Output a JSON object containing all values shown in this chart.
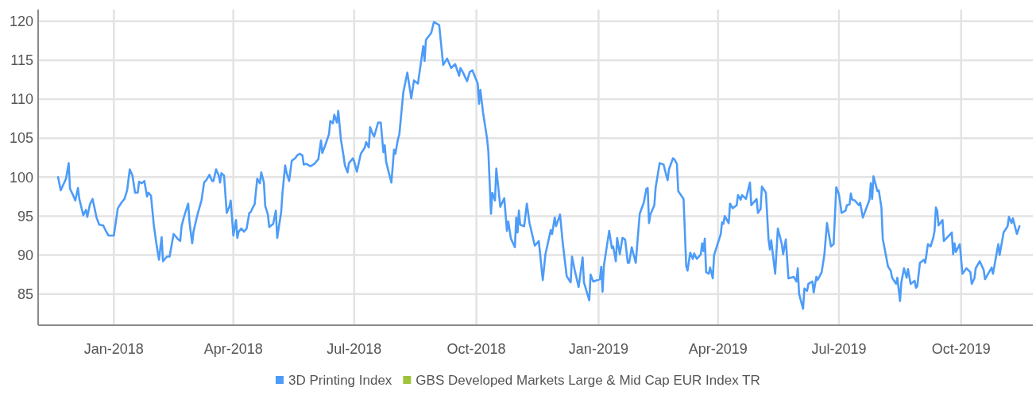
{
  "chart_data": {
    "type": "line",
    "xlim": [
      "2017-11-05",
      "2019-11-24"
    ],
    "ylim": [
      81,
      121.5
    ],
    "xticks": [
      {
        "value": "2018-01",
        "label": "Jan-2018"
      },
      {
        "value": "2018-04",
        "label": "Apr-2018"
      },
      {
        "value": "2018-07",
        "label": "Jul-2018"
      },
      {
        "value": "2018-10",
        "label": "Oct-2018"
      },
      {
        "value": "2019-01",
        "label": "Jan-2019"
      },
      {
        "value": "2019-04",
        "label": "Apr-2019"
      },
      {
        "value": "2019-07",
        "label": "Jul-2019"
      },
      {
        "value": "2019-10",
        "label": "Oct-2019"
      }
    ],
    "yticks": [
      85,
      90,
      95,
      100,
      105,
      110,
      115,
      120
    ],
    "grid": true,
    "legend": "bottom",
    "marker": "none",
    "line_style": "solid",
    "series": [
      {
        "name": "3D Printing Index",
        "color": "#4d9cf8",
        "x": [
          "2017-11-20",
          "2017-11-22",
          "2017-11-26",
          "2017-11-28",
          "2017-11-29",
          "2017-12-01",
          "2017-12-03",
          "2017-12-05",
          "2017-12-06",
          "2017-12-08",
          "2017-12-09",
          "2017-12-11",
          "2017-12-12",
          "2017-12-14",
          "2017-12-16",
          "2017-12-19",
          "2017-12-21",
          "2017-12-24",
          "2017-12-26",
          "2017-12-28",
          "2018-01-01",
          "2018-01-04",
          "2018-01-07",
          "2018-01-09",
          "2018-01-11",
          "2018-01-13",
          "2018-01-15",
          "2018-01-17",
          "2018-01-19",
          "2018-01-20",
          "2018-01-22",
          "2018-01-24",
          "2018-01-26",
          "2018-01-27",
          "2018-01-29",
          "2018-01-31",
          "2018-02-02",
          "2018-02-04",
          "2018-02-06",
          "2018-02-07",
          "2018-02-10",
          "2018-02-12",
          "2018-02-15",
          "2018-02-18",
          "2018-02-20",
          "2018-02-21",
          "2018-02-23",
          "2018-02-26",
          "2018-02-27",
          "2018-03-01",
          "2018-03-02",
          "2018-03-05",
          "2018-03-08",
          "2018-03-10",
          "2018-03-12",
          "2018-03-14",
          "2018-03-16",
          "2018-03-17",
          "2018-03-19",
          "2018-03-21",
          "2018-03-22",
          "2018-03-23",
          "2018-03-25",
          "2018-03-27",
          "2018-03-29",
          "2018-03-30",
          "2018-04-01",
          "2018-04-03",
          "2018-04-04",
          "2018-04-05",
          "2018-04-07",
          "2018-04-09",
          "2018-04-11",
          "2018-04-13",
          "2018-04-14",
          "2018-04-16",
          "2018-04-17",
          "2018-04-19",
          "2018-04-21",
          "2018-04-22",
          "2018-04-24",
          "2018-04-25",
          "2018-04-27",
          "2018-04-28",
          "2018-05-01",
          "2018-05-03",
          "2018-05-04",
          "2018-05-07",
          "2018-05-08",
          "2018-05-10",
          "2018-05-11",
          "2018-05-13",
          "2018-05-15",
          "2018-05-18",
          "2018-05-19",
          "2018-05-21",
          "2018-05-23",
          "2018-05-24",
          "2018-05-26",
          "2018-05-29",
          "2018-05-31",
          "2018-06-01",
          "2018-06-04",
          "2018-06-06",
          "2018-06-07",
          "2018-06-09",
          "2018-06-12",
          "2018-06-13",
          "2018-06-15",
          "2018-06-16",
          "2018-06-18",
          "2018-06-19",
          "2018-06-21",
          "2018-06-23",
          "2018-06-24",
          "2018-06-26",
          "2018-06-27",
          "2018-06-30",
          "2018-07-01",
          "2018-07-03",
          "2018-07-06",
          "2018-07-09",
          "2018-07-10",
          "2018-07-12",
          "2018-07-13",
          "2018-07-15",
          "2018-07-16",
          "2018-07-19",
          "2018-07-21",
          "2018-07-23",
          "2018-07-24",
          "2018-07-25",
          "2018-07-27",
          "2018-07-29",
          "2018-07-31",
          "2018-08-01",
          "2018-08-03",
          "2018-08-04",
          "2018-08-07",
          "2018-08-10",
          "2018-08-13",
          "2018-08-15",
          "2018-08-18",
          "2018-08-22",
          "2018-08-23",
          "2018-08-24",
          "2018-08-28",
          "2018-08-30",
          "2018-09-03",
          "2018-09-06",
          "2018-09-09",
          "2018-09-12",
          "2018-09-15",
          "2018-09-18",
          "2018-09-19",
          "2018-09-21",
          "2018-09-24",
          "2018-09-26",
          "2018-09-28",
          "2018-10-02",
          "2018-10-03",
          "2018-10-04",
          "2018-10-06",
          "2018-10-09",
          "2018-10-10",
          "2018-10-12",
          "2018-10-13",
          "2018-10-15",
          "2018-10-16",
          "2018-10-19",
          "2018-10-22",
          "2018-10-24",
          "2018-10-25",
          "2018-10-27",
          "2018-10-30",
          "2018-10-31",
          "2018-11-01",
          "2018-11-02",
          "2018-11-03",
          "2018-11-06",
          "2018-11-08",
          "2018-11-10",
          "2018-11-14",
          "2018-11-17",
          "2018-11-20",
          "2018-11-22",
          "2018-11-26",
          "2018-11-27",
          "2018-11-29",
          "2018-11-30",
          "2018-12-03",
          "2018-12-05",
          "2018-12-08",
          "2018-12-11",
          "2018-12-12",
          "2018-12-14",
          "2018-12-17",
          "2018-12-20",
          "2018-12-21",
          "2018-12-25",
          "2018-12-26",
          "2018-12-28",
          "2019-01-02",
          "2019-01-03",
          "2019-01-04",
          "2019-01-05",
          "2019-01-09",
          "2019-01-11",
          "2019-01-12",
          "2019-01-14",
          "2019-01-15",
          "2019-01-17",
          "2019-01-19",
          "2019-01-21",
          "2019-01-23",
          "2019-01-24",
          "2019-01-26",
          "2019-01-29",
          "2019-02-01",
          "2019-02-04",
          "2019-02-06",
          "2019-02-07",
          "2019-02-08",
          "2019-02-09",
          "2019-02-12",
          "2019-02-13",
          "2019-02-14",
          "2019-02-16",
          "2019-02-19",
          "2019-02-20",
          "2019-02-22",
          "2019-02-23",
          "2019-02-26",
          "2019-02-27",
          "2019-03-01",
          "2019-03-02",
          "2019-03-06",
          "2019-03-08",
          "2019-03-09",
          "2019-03-11",
          "2019-03-13",
          "2019-03-14",
          "2019-03-16",
          "2019-03-19",
          "2019-03-20",
          "2019-03-21",
          "2019-03-22",
          "2019-03-23",
          "2019-03-25",
          "2019-03-26",
          "2019-03-28",
          "2019-03-29",
          "2019-04-03",
          "2019-04-04",
          "2019-04-05",
          "2019-04-06",
          "2019-04-09",
          "2019-04-10",
          "2019-04-12",
          "2019-04-15",
          "2019-04-16",
          "2019-04-18",
          "2019-04-19",
          "2019-04-22",
          "2019-04-25",
          "2019-04-26",
          "2019-04-30",
          "2019-05-01",
          "2019-05-03",
          "2019-05-04",
          "2019-05-07",
          "2019-05-09",
          "2019-05-10",
          "2019-05-11",
          "2019-05-14",
          "2019-05-16",
          "2019-05-19",
          "2019-05-20",
          "2019-05-22",
          "2019-05-24",
          "2019-05-28",
          "2019-05-30",
          "2019-05-31",
          "2019-06-01",
          "2019-06-04",
          "2019-06-05",
          "2019-06-07",
          "2019-06-08",
          "2019-06-11",
          "2019-06-12",
          "2019-06-14",
          "2019-06-15",
          "2019-06-18",
          "2019-06-20",
          "2019-06-22",
          "2019-06-25",
          "2019-06-27",
          "2019-06-29",
          "2019-07-01",
          "2019-07-03",
          "2019-07-06",
          "2019-07-07",
          "2019-07-09",
          "2019-07-10",
          "2019-07-11",
          "2019-07-13",
          "2019-07-16",
          "2019-07-17",
          "2019-07-19",
          "2019-07-24",
          "2019-07-25",
          "2019-07-26",
          "2019-07-27",
          "2019-07-30",
          "2019-07-31",
          "2019-08-02",
          "2019-08-03",
          "2019-08-07",
          "2019-08-09",
          "2019-08-10",
          "2019-08-13",
          "2019-08-14",
          "2019-08-16",
          "2019-08-17",
          "2019-08-19",
          "2019-08-21",
          "2019-08-22",
          "2019-08-24",
          "2019-08-27",
          "2019-08-28",
          "2019-08-29",
          "2019-08-31",
          "2019-09-03",
          "2019-09-04",
          "2019-09-06",
          "2019-09-08",
          "2019-09-10",
          "2019-09-11",
          "2019-09-12",
          "2019-09-13",
          "2019-09-14",
          "2019-09-17",
          "2019-09-18",
          "2019-09-24",
          "2019-09-25",
          "2019-09-26",
          "2019-09-27",
          "2019-09-30",
          "2019-10-02",
          "2019-10-05",
          "2019-10-08",
          "2019-10-09",
          "2019-10-11",
          "2019-10-12",
          "2019-10-15",
          "2019-10-18",
          "2019-10-19",
          "2019-10-24",
          "2019-10-25",
          "2019-10-29",
          "2019-10-30",
          "2019-11-02",
          "2019-11-05",
          "2019-11-06",
          "2019-11-08",
          "2019-11-09",
          "2019-11-12",
          "2019-11-14"
        ],
        "values": [
          100.0,
          98.3,
          99.8,
          101.8,
          98.5,
          97.8,
          97,
          98.6,
          97.2,
          95.8,
          95.1,
          95.8,
          94.9,
          96.5,
          97.2,
          94.8,
          93.9,
          93.8,
          93.1,
          92.5,
          92.5,
          96,
          96.8,
          97.2,
          98.3,
          101,
          100.2,
          98,
          98,
          99.4,
          99.2,
          99.5,
          97.5,
          98,
          97.6,
          94,
          91.5,
          89.4,
          92.3,
          89.2,
          89.8,
          89.8,
          92.7,
          92.1,
          91.8,
          93.7,
          95,
          96.6,
          94.2,
          91.5,
          93,
          95.2,
          97,
          99.3,
          99.7,
          100.3,
          99.5,
          99.5,
          101,
          100.2,
          99.3,
          100.5,
          100.2,
          95.4,
          96.2,
          97,
          92.5,
          94.5,
          92.2,
          93,
          93.4,
          93,
          93.4,
          95.4,
          95.5,
          96.2,
          96.5,
          99.8,
          99.2,
          100.6,
          99.3,
          96.3,
          95.2,
          93.6,
          94,
          95.7,
          92.2,
          95.5,
          98,
          101.5,
          100.6,
          99.5,
          102.1,
          102.5,
          102.8,
          103,
          102.8,
          101.6,
          101.7,
          101.4,
          101.6,
          101.7,
          102.3,
          104.7,
          103.1,
          104,
          105.5,
          107.2,
          106.9,
          108,
          107,
          108.5,
          104.8,
          102.7,
          101.5,
          100.6,
          101.8,
          102.4,
          102,
          100.7,
          103,
          103.8,
          104.5,
          103.8,
          106.4,
          105.5,
          105.2,
          107,
          107,
          103.2,
          104.1,
          102,
          100.6,
          99.3,
          103.5,
          103,
          104.9,
          105.5,
          110.9,
          113.4,
          110.1,
          112.4,
          112,
          116.8,
          114.9,
          117.6,
          118.5,
          119.9,
          119.5,
          114.4,
          115.2,
          114,
          114.5,
          113,
          114,
          113.4,
          112.3,
          113.5,
          113.7,
          112,
          109.4,
          111.2,
          108.3,
          105,
          103.3,
          95.3,
          98,
          97,
          101.1,
          96.2,
          97.3,
          93.1,
          94.3,
          92.1,
          91,
          94.8,
          92.9,
          95.7,
          93.9,
          93.7,
          96.6,
          94.1,
          91.2,
          91.8,
          86.8,
          90.1,
          93.2,
          92.7,
          94.8,
          93.7,
          95.2,
          91.6,
          87.3,
          86.5,
          89.8,
          88.1,
          85.9,
          89.7,
          86.5,
          84.2,
          87.5,
          86.6,
          86.9,
          88.5,
          85.3,
          88.6,
          93.1,
          90.9,
          91.1,
          89.2,
          92.2,
          90.1,
          92.2,
          92,
          89,
          89,
          91,
          89,
          95.3,
          96.7,
          98.5,
          98.6,
          94.1,
          95.2,
          96.4,
          98.7,
          99.7,
          101.8,
          101.6,
          100.9,
          99.6,
          101,
          102.4,
          102.3,
          101.7,
          98.2,
          97.2,
          88.6,
          88,
          90.3,
          89.5,
          90.2,
          89.5,
          90.1,
          91.5,
          90.5,
          92.1,
          87.8,
          87.6,
          88.4,
          87,
          90,
          92.7,
          94.2,
          94,
          95,
          94.1,
          96.6,
          96,
          96.4,
          97.7,
          97.1,
          97.7,
          97.2,
          99.3,
          96.4,
          97.2,
          95.4,
          95.9,
          98.8,
          98,
          92,
          90.7,
          91.9,
          87.6,
          93.4,
          91.4,
          90.1,
          92,
          87,
          87.2,
          86.6,
          88.3,
          85,
          83.1,
          85.7,
          85.4,
          86.3,
          86.6,
          85.2,
          87.2,
          86.8,
          87.8,
          90,
          94.1,
          91.1,
          91.4,
          98.7,
          97.8,
          95.4,
          95.7,
          96.4,
          96.5,
          97.9,
          97.1,
          97,
          96.4,
          96.7,
          94.8,
          97.1,
          99.2,
          97.2,
          100.1,
          98.2,
          98.3,
          96.1,
          92.1,
          88.5,
          88,
          87.1,
          86.3,
          87.1,
          84.1,
          86.5,
          88.3,
          87.1,
          88.2,
          86.3,
          86.7,
          85.8,
          86,
          89,
          89.4,
          89,
          91.4,
          91.1,
          92.2,
          93.1,
          96.1,
          95.7,
          93.8,
          94.5,
          91.8,
          92.9,
          90.1,
          91.5,
          90.4,
          91.4,
          87.6,
          88.3,
          87.8,
          86.3,
          87,
          88.3,
          89.2,
          88.1,
          86.9,
          88.4,
          87.6,
          91.4,
          90,
          92.9,
          93.7,
          94.9,
          94.1,
          94.7,
          92.7,
          93.7
        ]
      },
      {
        "name": "GBS Developed Markets Large & Mid Cap EUR Index TR",
        "color": "#9fc33b"
      }
    ]
  }
}
